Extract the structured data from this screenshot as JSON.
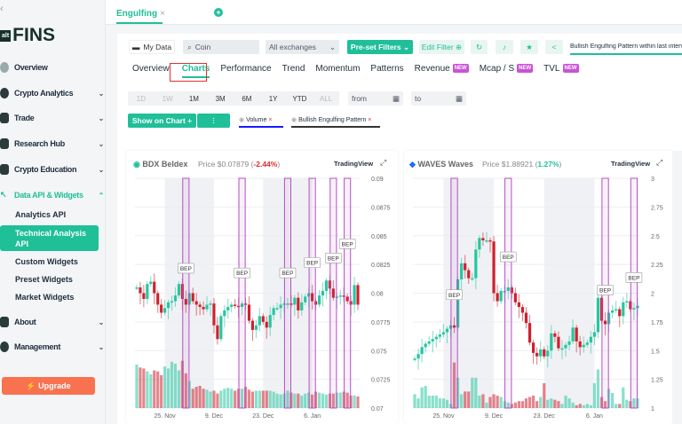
{
  "sidebar": {
    "back": "‹",
    "logo_badge": "alt",
    "logo_text": "FINS",
    "items": [
      {
        "label": "Overview"
      },
      {
        "label": "Crypto Analytics"
      },
      {
        "label": "Trade"
      },
      {
        "label": "Research Hub"
      },
      {
        "label": "Crypto Education"
      },
      {
        "label": "Data API & Widgets"
      },
      {
        "label": "About"
      },
      {
        "label": "Management"
      }
    ],
    "subitems": [
      {
        "label": "Analytics API"
      },
      {
        "label": "Technical Analysis API"
      },
      {
        "label": "Custom Widgets"
      },
      {
        "label": "Preset Widgets"
      },
      {
        "label": "Market Widgets"
      }
    ],
    "upgrade": "⚡ Upgrade"
  },
  "tabs": {
    "active": "Engulfing",
    "close": "×",
    "add": "+"
  },
  "toolbar": {
    "my_data": "My Data",
    "coin_placeholder": "Coin",
    "exchange": "All exchanges",
    "preset": "Pre-set Filters ⌄",
    "edit_filter": "Edit Filter ⊕",
    "filter_tag": "Bullish Engulfing Pattern within last interval"
  },
  "menu": [
    {
      "label": "Overview"
    },
    {
      "label": "Charts",
      "selected": true
    },
    {
      "label": "Performance"
    },
    {
      "label": "Trend"
    },
    {
      "label": "Momentum"
    },
    {
      "label": "Patterns"
    },
    {
      "label": "Revenue",
      "badge": "NEW"
    },
    {
      "label": "Mcap / S",
      "badge": "NEW"
    },
    {
      "label": "TVL",
      "badge": "NEW"
    }
  ],
  "ranges": [
    "1D",
    "1W",
    "1M",
    "3M",
    "6M",
    "1Y",
    "YTD",
    "ALL"
  ],
  "range_disabled": [
    "1D",
    "1W",
    "ALL"
  ],
  "from_placeholder": "from",
  "to_placeholder": "to",
  "show_on_chart": "Show on Chart +",
  "indicators": [
    {
      "label": "Volume",
      "remove": "×",
      "color": "#1a1aff"
    },
    {
      "label": "Bullish Engulfing Pattern",
      "remove": "×",
      "color": "#333"
    }
  ],
  "colors": {
    "accent": "#1fbf98",
    "up": "#26c6a0",
    "down": "#d0212d",
    "pattern": "#b44fc4",
    "negative": "#e02a2a",
    "positive": "#1fbf98"
  },
  "chart_data": [
    {
      "type": "candlestick",
      "symbol": "BDX",
      "name": "Beldex",
      "price_label": "Price",
      "price": "$0.07879",
      "change": "-2.44%",
      "source": "TradingView",
      "marker": "BEP",
      "ylim": [
        0.07,
        0.09
      ],
      "yticks": [
        "0.07",
        "0.0725",
        "0.075",
        "0.0775",
        "0.08",
        "0.0825",
        "0.085",
        "0.0875",
        "0.09"
      ],
      "xticks": [
        "25. Nov",
        "9. Dec",
        "23. Dec",
        "6. Jan"
      ],
      "close": [
        0.0805,
        0.08,
        0.0795,
        0.0808,
        0.081,
        0.08,
        0.079,
        0.0783,
        0.0787,
        0.0792,
        0.0793,
        0.0798,
        0.0808,
        0.0795,
        0.079,
        0.08,
        0.0793,
        0.079,
        0.0788,
        0.0786,
        0.079,
        0.0791,
        0.0772,
        0.076,
        0.078,
        0.0785,
        0.0788,
        0.079,
        0.0789,
        0.0788,
        0.0791,
        0.079,
        0.0776,
        0.0768,
        0.0772,
        0.078,
        0.0775,
        0.077,
        0.0781,
        0.0787,
        0.0787,
        0.079,
        0.0791,
        0.0791,
        0.079,
        0.0796,
        0.0785,
        0.0792,
        0.0797,
        0.08,
        0.0793,
        0.079,
        0.0798,
        0.0802,
        0.0811,
        0.0804,
        0.0796,
        0.0797,
        0.0798,
        0.0797,
        0.0793,
        0.079,
        0.0807,
        0.079
      ],
      "volume": [
        0.45,
        0.42,
        0.41,
        0.38,
        0.35,
        0.39,
        0.38,
        0.34,
        0.43,
        0.41,
        0.48,
        0.46,
        0.39,
        0.49,
        0.36,
        0.28,
        0.2,
        0.22,
        0.23,
        0.2,
        0.19,
        0.17,
        0.18,
        0.15,
        0.18,
        0.2,
        0.21,
        0.2,
        0.18,
        0.2,
        0.2,
        0.22,
        0.19,
        0.17,
        0.18,
        0.18,
        0.18,
        0.18,
        0.18,
        0.17,
        0.15,
        0.14,
        0.15,
        0.18,
        0.16,
        0.15,
        0.15,
        0.13,
        0.15,
        0.16,
        0.14,
        0.17,
        0.16,
        0.15,
        0.14,
        0.15,
        0.15,
        0.16,
        0.16,
        0.17,
        0.16,
        0.13,
        0.13,
        0.12
      ],
      "patterns": [
        14,
        30,
        43,
        50,
        56,
        60
      ]
    },
    {
      "type": "candlestick",
      "symbol": "WAVES",
      "name": "Waves",
      "price_label": "Price",
      "price": "$1.88921",
      "change": "1.27%",
      "source": "TradingView",
      "marker": "BEP",
      "ylim": [
        1,
        3
      ],
      "yticks": [
        "1",
        "1.25",
        "1.5",
        "1.75",
        "2",
        "2.25",
        "2.5",
        "2.75",
        "3"
      ],
      "xticks": [
        "25. Nov",
        "9. Dec",
        "23. Dec",
        "6. Jan"
      ],
      "close": [
        1.43,
        1.47,
        1.53,
        1.56,
        1.58,
        1.6,
        1.62,
        1.64,
        1.66,
        1.69,
        1.72,
        1.7,
        2.12,
        2.26,
        2.2,
        2.13,
        2.13,
        2.38,
        2.48,
        2.46,
        2.46,
        2.45,
        2.0,
        1.93,
        2.02,
        2.02,
        2.05,
        2.0,
        1.92,
        1.88,
        1.83,
        1.74,
        1.57,
        1.48,
        1.45,
        1.51,
        1.45,
        1.5,
        1.65,
        1.62,
        1.52,
        1.52,
        1.55,
        1.58,
        1.7,
        1.58,
        1.53,
        1.55,
        1.57,
        1.62,
        1.66,
        1.96,
        1.76,
        1.73,
        1.83,
        1.85,
        1.86,
        1.8,
        1.92,
        1.93,
        1.86,
        1.87,
        1.89
      ],
      "volume": [
        0.1,
        0.07,
        0.15,
        0.16,
        0.09,
        0.09,
        0.09,
        0.07,
        0.07,
        0.06,
        0.03,
        0.33,
        0.22,
        0.1,
        0.12,
        0.12,
        0.22,
        0.22,
        0.09,
        0.1,
        0.04,
        0.08,
        0.1,
        0.09,
        0.08,
        0.05,
        0.04,
        0.03,
        0.04,
        0.05,
        0.05,
        0.07,
        0.08,
        0.09,
        0.05,
        0.08,
        0.18,
        0.06,
        0.07,
        0.06,
        0.05,
        0.03,
        0.09,
        0.07,
        0.04,
        0.02,
        0.03,
        0.02,
        0.03,
        0.02,
        0.18,
        0.28,
        0.08,
        0.05,
        0.14,
        0.11,
        0.03,
        0.03,
        0.15,
        0.06,
        0.05,
        0.07,
        0.07
      ],
      "patterns": [
        11,
        26,
        53,
        61
      ]
    }
  ]
}
